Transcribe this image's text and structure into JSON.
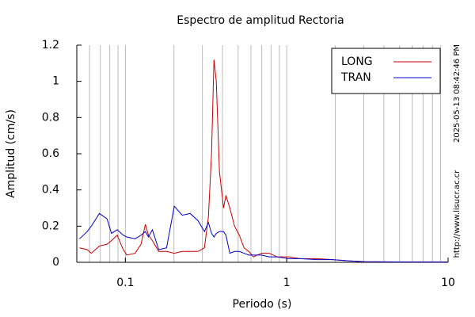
{
  "chart_data": {
    "type": "line",
    "title": "Espectro de amplitud Rectoria",
    "x_label": "Periodo (s)",
    "y_label": "Amplitud (cm/s)",
    "side_texts": [
      "2025-05-13 08:42:46 PM",
      "http://www.lisucr.ac.cr"
    ],
    "x_scale": "log",
    "xlim": [
      0.05,
      10
    ],
    "ylim": [
      0,
      1.2
    ],
    "xticks": [
      0.1,
      1,
      10
    ],
    "xgrid": [
      0.06,
      0.07,
      0.08,
      0.09,
      0.1,
      0.2,
      0.3,
      0.4,
      0.5,
      0.6,
      0.7,
      0.8,
      0.9,
      1,
      2,
      3,
      4,
      5,
      6,
      7,
      8,
      9
    ],
    "yticks": [
      0,
      0.2,
      0.4,
      0.6,
      0.8,
      1,
      1.2
    ],
    "legend_position": "upper right",
    "x": [
      0.052,
      0.058,
      0.0615,
      0.069,
      0.077,
      0.082,
      0.089,
      0.097,
      0.102,
      0.115,
      0.125,
      0.133,
      0.139,
      0.147,
      0.161,
      0.18,
      0.201,
      0.225,
      0.252,
      0.282,
      0.309,
      0.327,
      0.342,
      0.354,
      0.366,
      0.383,
      0.406,
      0.42,
      0.444,
      0.475,
      0.508,
      0.544,
      0.582,
      0.622,
      0.697,
      0.78,
      0.873,
      1.03,
      1.22,
      1.54,
      1.92,
      2.41,
      3.02,
      4.75,
      10
    ],
    "series": [
      {
        "name": "LONG",
        "color": "#cc0000",
        "values": [
          0.08,
          0.07,
          0.05,
          0.09,
          0.1,
          0.12,
          0.15,
          0.07,
          0.04,
          0.05,
          0.1,
          0.21,
          0.15,
          0.12,
          0.06,
          0.06,
          0.05,
          0.06,
          0.06,
          0.06,
          0.08,
          0.25,
          0.6,
          1.12,
          1.0,
          0.5,
          0.3,
          0.37,
          0.3,
          0.2,
          0.15,
          0.08,
          0.06,
          0.03,
          0.05,
          0.05,
          0.03,
          0.03,
          0.02,
          0.02,
          0.015,
          0.008,
          0.003,
          0.002,
          0.002
        ]
      },
      {
        "name": "TRAN",
        "color": "#0000cc",
        "values": [
          0.13,
          0.17,
          0.2,
          0.27,
          0.24,
          0.16,
          0.18,
          0.15,
          0.14,
          0.13,
          0.15,
          0.17,
          0.14,
          0.18,
          0.07,
          0.08,
          0.31,
          0.26,
          0.27,
          0.23,
          0.17,
          0.22,
          0.16,
          0.14,
          0.16,
          0.17,
          0.17,
          0.15,
          0.05,
          0.06,
          0.06,
          0.05,
          0.04,
          0.04,
          0.04,
          0.03,
          0.03,
          0.02,
          0.02,
          0.015,
          0.015,
          0.008,
          0.004,
          0.002,
          0.001
        ]
      }
    ]
  }
}
